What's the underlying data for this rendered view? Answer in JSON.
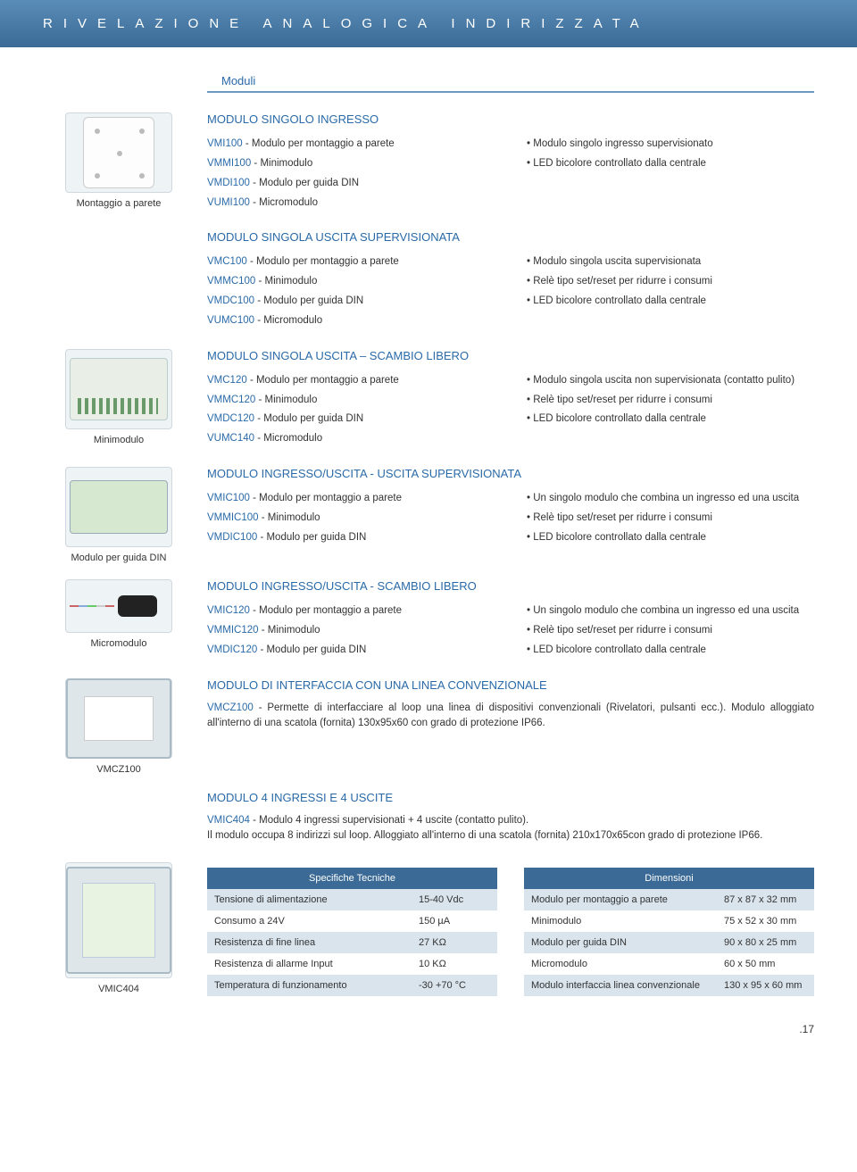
{
  "header": "RIVELAZIONE ANALOGICA INDIRIZZATA",
  "section_label": "Moduli",
  "footer_page": ".17",
  "sidebar": {
    "cap1": "Montaggio a parete",
    "cap2": "Minimodulo",
    "cap3": "Modulo per guida DIN",
    "cap4": "Micromodulo",
    "cap5": "VMCZ100",
    "cap6": "VMIC404"
  },
  "mod1": {
    "title": "MODULO SINGOLO INGRESSO",
    "l1c": "VMI100",
    "l1t": " - Modulo per montaggio a parete",
    "l2c": "VMMI100",
    "l2t": " - Minimodulo",
    "l3c": "VMDI100",
    "l3t": " - Modulo per guida DIN",
    "l4c": "VUMI100",
    "l4t": " - Micromodulo",
    "b1": "Modulo singolo ingresso supervisionato",
    "b2": "LED bicolore controllato dalla centrale"
  },
  "mod2": {
    "title": "MODULO SINGOLA USCITA SUPERVISIONATA",
    "l1c": "VMC100",
    "l1t": " - Modulo per montaggio a parete",
    "l2c": "VMMC100",
    "l2t": " - Minimodulo",
    "l3c": "VMDC100",
    "l3t": " - Modulo per guida DIN",
    "l4c": "VUMC100",
    "l4t": " - Micromodulo",
    "b1": "Modulo singola uscita supervisionata",
    "b2": "Relè tipo set/reset per ridurre i consumi",
    "b3": "LED bicolore controllato dalla centrale"
  },
  "mod3": {
    "title": "MODULO SINGOLA USCITA – SCAMBIO LIBERO",
    "l1c": "VMC120",
    "l1t": " - Modulo per montaggio a parete",
    "l2c": "VMMC120",
    "l2t": " - Minimodulo",
    "l3c": "VMDC120",
    "l3t": " - Modulo per guida DIN",
    "l4c": "VUMC140",
    "l4t": " - Micromodulo",
    "b1": "Modulo singola uscita non supervisionata (contatto pulito)",
    "b2": "Relè tipo set/reset per ridurre i consumi",
    "b3": "LED bicolore controllato dalla centrale"
  },
  "mod4": {
    "title": "MODULO INGRESSO/USCITA - USCITA SUPERVISIONATA",
    "l1c": "VMIC100",
    "l1t": " - Modulo per montaggio a parete",
    "l2c": "VMMIC100",
    "l2t": " - Minimodulo",
    "l3c": "VMDIC100",
    "l3t": " - Modulo per guida DIN",
    "b1": "Un singolo modulo che combina un ingresso ed una uscita",
    "b2": "Relè tipo set/reset per ridurre i consumi",
    "b3": "LED bicolore controllato dalla centrale"
  },
  "mod5": {
    "title": "MODULO INGRESSO/USCITA - SCAMBIO LIBERO",
    "l1c": "VMIC120",
    "l1t": " - Modulo per montaggio a parete",
    "l2c": "VMMIC120",
    "l2t": " - Minimodulo",
    "l3c": "VMDIC120",
    "l3t": " - Modulo per guida DIN",
    "b1": "Un singolo modulo che combina un ingresso ed una uscita",
    "b2": "Relè tipo set/reset per ridurre i consumi",
    "b3": "LED bicolore controllato dalla centrale"
  },
  "mod6": {
    "title": "MODULO DI INTERFACCIA CON UNA LINEA CONVENZIONALE",
    "code": "VMCZ100",
    "desc": " - Permette di interfacciare al loop una linea di dispositivi convenzionali (Rivelatori, pulsanti ecc.). Modulo alloggiato all'interno di una scatola (fornita) 130x95x60 con grado di protezione IP66."
  },
  "mod7": {
    "title": "MODULO  4 INGRESSI E 4 USCITE",
    "code": "VMIC404",
    "l1": " - Modulo 4 ingressi supervisionati + 4 uscite (contatto pulito).",
    "desc": "Il modulo occupa 8 indirizzi sul loop. Alloggiato all'interno di una scatola (fornita) 210x170x65con grado di protezione IP66."
  },
  "table_spec": {
    "header": "Specifiche Tecniche",
    "rows": [
      [
        "Tensione di alimentazione",
        "15-40 Vdc"
      ],
      [
        "Consumo a 24V",
        "150 µA"
      ],
      [
        "Resistenza di fine linea",
        "27 KΩ"
      ],
      [
        "Resistenza di allarme Input",
        "10 KΩ"
      ],
      [
        "Temperatura di funzionamento",
        "-30  +70 °C"
      ]
    ]
  },
  "table_dim": {
    "header": "Dimensioni",
    "rows": [
      [
        "Modulo per montaggio a parete",
        "87 x 87 x 32 mm"
      ],
      [
        "Minimodulo",
        "75 x 52 x 30 mm"
      ],
      [
        "Modulo per guida DIN",
        "90 x 80 x 25 mm"
      ],
      [
        "Micromodulo",
        "60 x 50 mm"
      ],
      [
        "Modulo interfaccia linea convenzionale",
        "130 x 95 x 60 mm"
      ]
    ]
  },
  "colors": {
    "band_top": "#5a8db8",
    "band_bottom": "#3a6a95",
    "accent_blue": "#2a6aa8",
    "row_shade": "#d9e4ed",
    "table_header": "#3a6a95"
  }
}
